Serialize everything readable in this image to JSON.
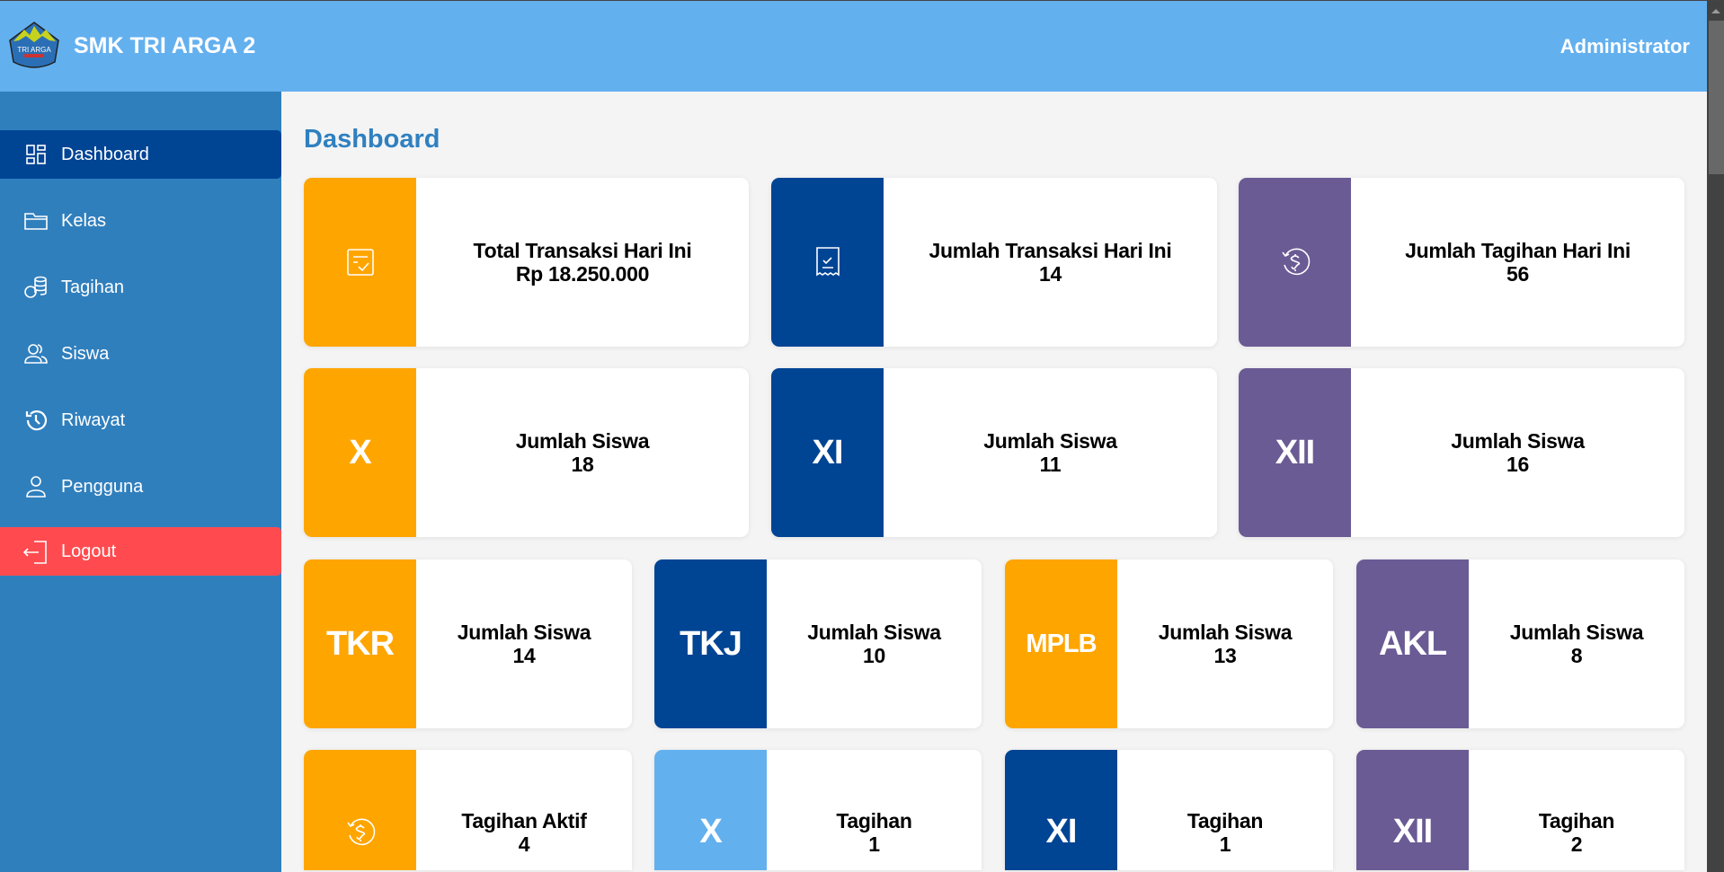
{
  "header": {
    "school_name": "SMK TRI ARGA 2",
    "user": "Administrator",
    "logo_text": "TRI ARGA JAKARTA"
  },
  "sidebar": {
    "items": [
      {
        "label": "Dashboard",
        "icon": "dashboard-icon",
        "active": true
      },
      {
        "label": "Kelas",
        "icon": "folder-icon"
      },
      {
        "label": "Tagihan",
        "icon": "coins-icon"
      },
      {
        "label": "Siswa",
        "icon": "users-icon"
      },
      {
        "label": "Riwayat",
        "icon": "history-icon"
      },
      {
        "label": "Pengguna",
        "icon": "user-icon"
      },
      {
        "label": "Logout",
        "icon": "logout-icon"
      }
    ]
  },
  "main": {
    "title": "Dashboard",
    "cards": [
      {
        "badge": "",
        "icon": "checklist-icon",
        "label": "Total Transaksi Hari Ini",
        "value": "Rp 18.250.000",
        "color": "#ffa500"
      },
      {
        "badge": "",
        "icon": "receipt-icon",
        "label": "Jumlah Transaksi Hari Ini",
        "value": "14",
        "color": "#004494"
      },
      {
        "badge": "",
        "icon": "dollar-cycle-icon",
        "label": "Jumlah Tagihan Hari Ini",
        "value": "56",
        "color": "#6a5b94"
      },
      {
        "badge": "X",
        "label": "Jumlah Siswa",
        "value": "18",
        "color": "#ffa500"
      },
      {
        "badge": "XI",
        "label": "Jumlah Siswa",
        "value": "11",
        "color": "#004494"
      },
      {
        "badge": "XII",
        "label": "Jumlah Siswa",
        "value": "16",
        "color": "#6a5b94"
      },
      {
        "badge": "TKR",
        "label": "Jumlah Siswa",
        "value": "14",
        "color": "#ffa500"
      },
      {
        "badge": "TKJ",
        "label": "Jumlah Siswa",
        "value": "10",
        "color": "#004494"
      },
      {
        "badge": "MPLB",
        "label": "Jumlah Siswa",
        "value": "13",
        "color": "#ffa500"
      },
      {
        "badge": "AKL",
        "label": "Jumlah Siswa",
        "value": "8",
        "color": "#6a5b94"
      },
      {
        "badge": "",
        "icon": "dollar-cycle-icon",
        "label": "Tagihan Aktif",
        "value": "4",
        "color": "#ffa500"
      },
      {
        "badge": "X",
        "label": "Tagihan",
        "value": "1",
        "color": "#63b0ef"
      },
      {
        "badge": "XI",
        "label": "Tagihan",
        "value": "1",
        "color": "#004494"
      },
      {
        "badge": "XII",
        "label": "Tagihan",
        "value": "2",
        "color": "#6a5b94"
      }
    ]
  },
  "colors": {
    "header": "#63b0ef",
    "sidebar": "#307fbd",
    "active": "#004494",
    "logout": "#ff4b4f",
    "title": "#2f80c0"
  }
}
